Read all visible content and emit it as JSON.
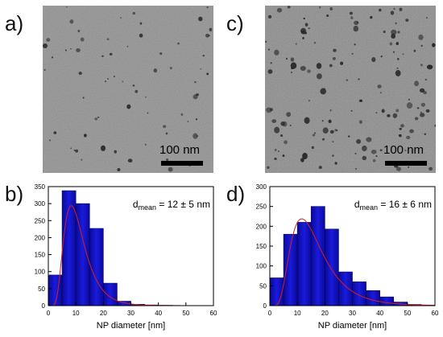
{
  "panels": {
    "a": "a)",
    "b": "b)",
    "c": "c)",
    "d": "d)"
  },
  "micrographs": [
    {
      "scale_label": "100 nm",
      "background": "#8a8a8a",
      "particle_color": "#2a2a2a"
    },
    {
      "scale_label": "100 nm",
      "background": "#858585",
      "particle_color": "#262626"
    }
  ],
  "chart_data": [
    {
      "type": "bar",
      "xlabel": "NP diameter [nm]",
      "ylabel": "",
      "xlim": [
        0,
        60
      ],
      "ylim": [
        0,
        350
      ],
      "xticks": [
        0,
        10,
        20,
        30,
        40,
        50,
        60
      ],
      "yticks": [
        0,
        50,
        100,
        150,
        200,
        250,
        300,
        350
      ],
      "bin_edges": [
        0,
        5,
        10,
        15,
        20,
        25,
        30,
        35,
        40,
        45,
        50,
        55,
        60
      ],
      "values": [
        90,
        338,
        300,
        227,
        66,
        13,
        4,
        2,
        1,
        0,
        0,
        0
      ],
      "annotation_main": "d",
      "annotation_sub": "mean",
      "annotation_rest": " = 12 ± 5 nm",
      "bar_color": "#1a1adc",
      "fit_color": "#d42020",
      "fit": {
        "mu": 2.32,
        "sigma": 0.45,
        "scale": 3050
      }
    },
    {
      "type": "bar",
      "xlabel": "NP diameter [nm]",
      "ylabel": "",
      "xlim": [
        0,
        60
      ],
      "ylim": [
        0,
        300
      ],
      "xticks": [
        0,
        10,
        20,
        30,
        40,
        50,
        60
      ],
      "yticks": [
        0,
        50,
        100,
        150,
        200,
        250,
        300
      ],
      "bin_edges": [
        0,
        5,
        10,
        15,
        20,
        25,
        30,
        35,
        40,
        45,
        50,
        55,
        60
      ],
      "values": [
        70,
        180,
        210,
        250,
        193,
        85,
        60,
        38,
        22,
        9,
        3,
        0
      ],
      "annotation_main": "d",
      "annotation_sub": "mean",
      "annotation_rest": " = 16 ± 6 nm",
      "bar_color": "#1a1adc",
      "fit_color": "#d42020",
      "fit": {
        "mu": 2.7,
        "sigma": 0.5,
        "scale": 3600
      }
    }
  ]
}
